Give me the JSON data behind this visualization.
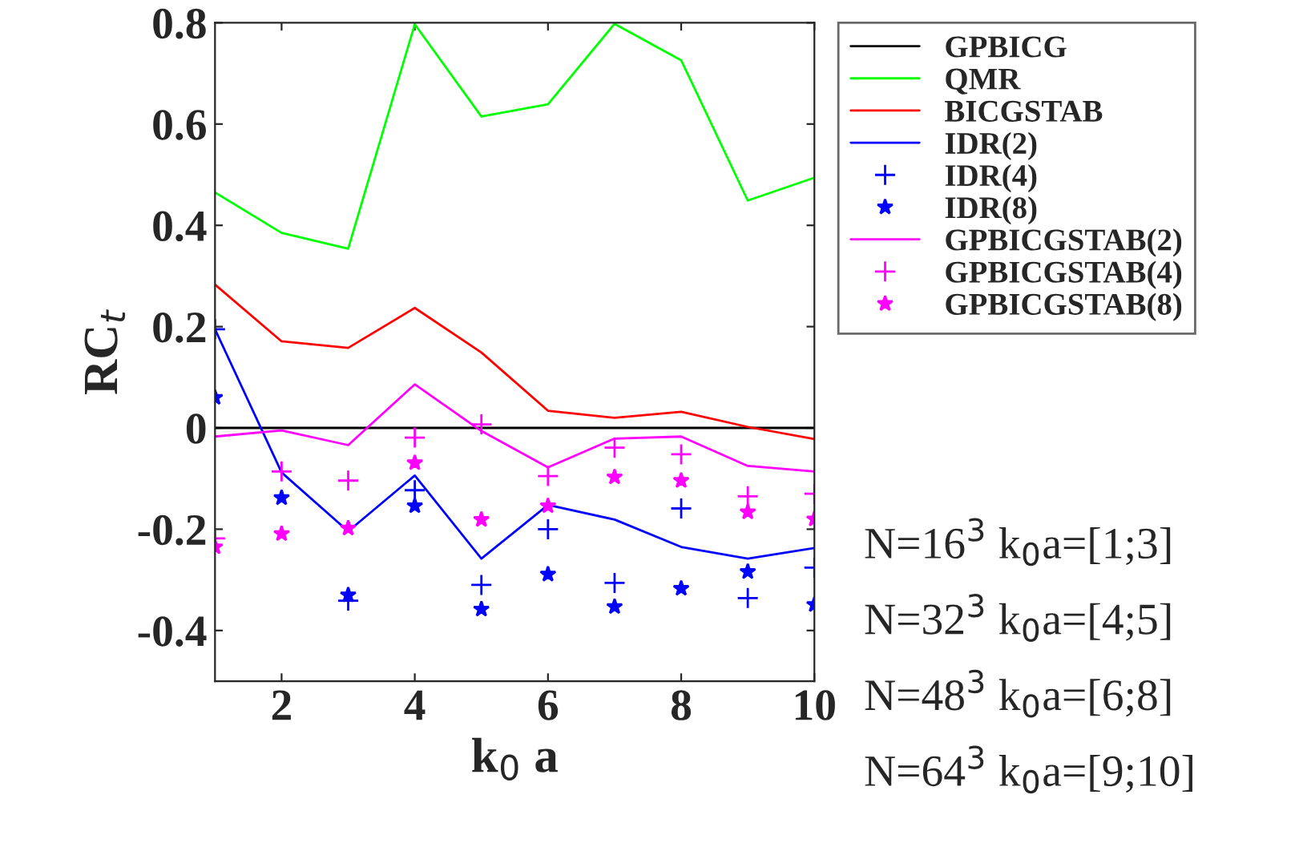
{
  "chart_data": {
    "type": "line",
    "xlabel": "k$_{0}$ a",
    "ylabel": "RC$_{t}$",
    "x": [
      1,
      2,
      3,
      4,
      5,
      6,
      7,
      8,
      9,
      10
    ],
    "xlim": [
      1,
      10
    ],
    "xticks": [
      2,
      4,
      6,
      8,
      10
    ],
    "ylim": [
      -0.5,
      0.8
    ],
    "yticks": [
      {
        "value": -0.4,
        "label": "-0.4"
      },
      {
        "value": -0.2,
        "label": "-0.2"
      },
      0,
      0.2,
      0.4,
      0.6,
      0.8
    ],
    "grid": false,
    "legend": "right",
    "series": [
      {
        "name": "GPBICG",
        "color": "#000000",
        "marker": "none",
        "values": [
          0,
          0,
          0,
          0,
          0,
          0,
          0,
          0,
          0,
          0
        ]
      },
      {
        "name": "QMR",
        "color": "#00ff00",
        "marker": "none",
        "values": [
          0.465,
          0.385,
          0.354,
          0.797,
          0.615,
          0.639,
          0.798,
          0.726,
          0.449,
          0.494
        ]
      },
      {
        "name": "BICGSTAB",
        "color": "#ff0000",
        "marker": "none",
        "values": [
          0.283,
          0.171,
          0.158,
          0.237,
          0.149,
          0.034,
          0.02,
          0.032,
          0.002,
          -0.022
        ]
      },
      {
        "name": "IDR(2)",
        "color": "#0000ff",
        "marker": "none",
        "values": [
          0.195,
          -0.088,
          -0.204,
          -0.094,
          -0.258,
          -0.152,
          -0.181,
          -0.235,
          -0.258,
          -0.237
        ]
      },
      {
        "name": "IDR(4)",
        "color": "#0000ff",
        "type": "scatter",
        "marker": "cross",
        "values": [
          0.195,
          null,
          -0.341,
          -0.123,
          -0.31,
          -0.2,
          -0.306,
          -0.159,
          -0.336,
          -0.276
        ]
      },
      {
        "name": "IDR(8)",
        "color": "#0000ff",
        "type": "scatter",
        "marker": "star",
        "values": [
          0.06,
          -0.138,
          -0.33,
          -0.154,
          -0.358,
          -0.289,
          -0.353,
          -0.317,
          -0.284,
          -0.349
        ]
      },
      {
        "name": "GPBICGSTAB(2)",
        "color": "#ff00ff",
        "marker": "none",
        "values": [
          -0.017,
          -0.005,
          -0.034,
          0.086,
          -0.006,
          -0.078,
          -0.021,
          -0.017,
          -0.075,
          -0.086
        ]
      },
      {
        "name": "GPBICGSTAB(4)",
        "color": "#ff00ff",
        "type": "scatter",
        "marker": "cross",
        "values": [
          -0.218,
          -0.086,
          -0.104,
          -0.019,
          0.007,
          -0.095,
          -0.039,
          -0.052,
          -0.135,
          -0.13
        ]
      },
      {
        "name": "GPBICGSTAB(8)",
        "color": "#ff00ff",
        "type": "scatter",
        "marker": "star",
        "values": [
          -0.235,
          -0.209,
          -0.198,
          -0.069,
          -0.181,
          -0.154,
          -0.097,
          -0.104,
          -0.166,
          -0.18
        ]
      }
    ],
    "annotations": [
      "N=16$^{3}$ k$_{0}$a=[1;3]",
      "N=32$^{3}$ k$_{0}$a=[4;5]",
      "N=48$^{3}$ k$_{0}$a=[6;8]",
      "N=64$^{3}$ k$_{0}$a=[9;10]"
    ]
  }
}
